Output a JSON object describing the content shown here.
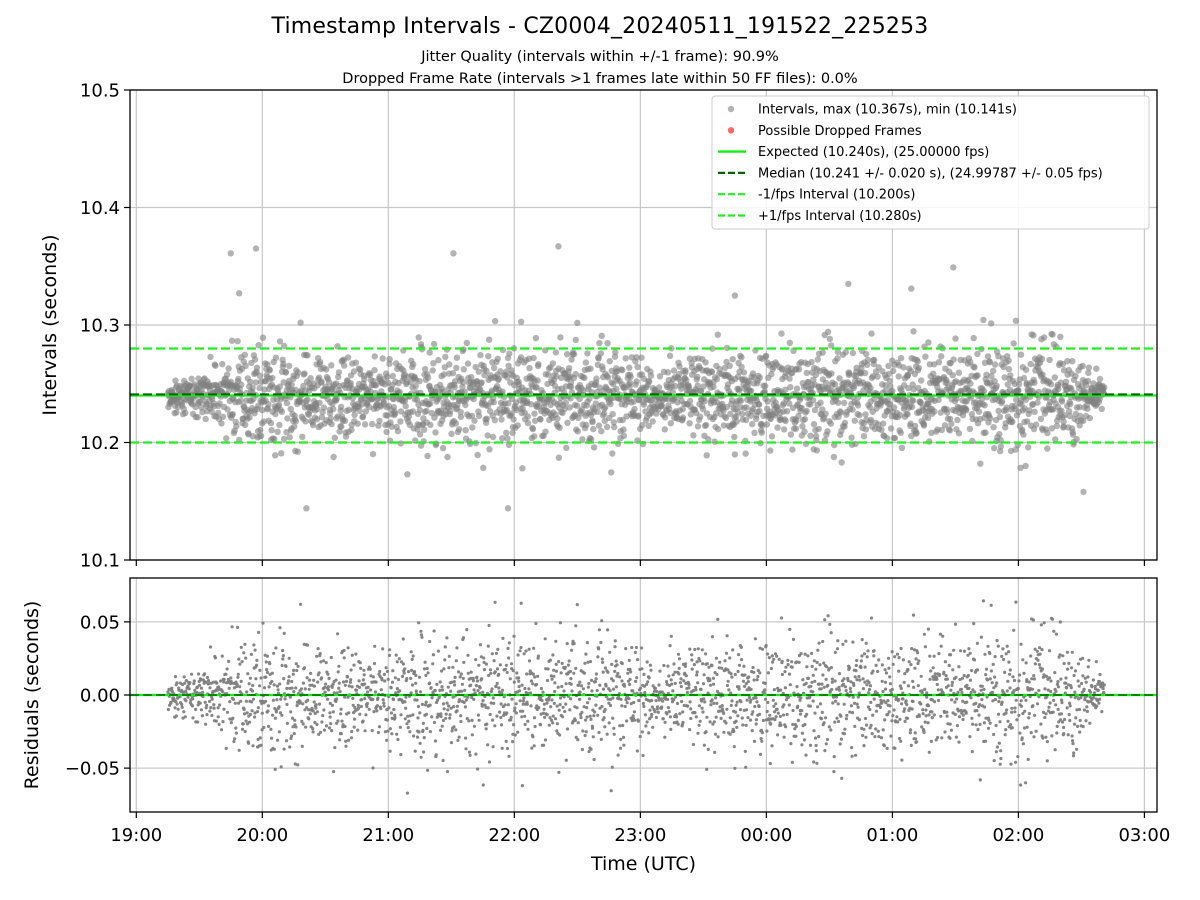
{
  "figure": {
    "title": "Timestamp Intervals - CZ0004_20240511_191522_225253",
    "subtitle_1": "Jitter Quality (intervals within +/-1 frame): 90.9%",
    "subtitle_2": "Dropped Frame Rate (intervals >1 frames late within 50 FF files): 0.0%"
  },
  "colors": {
    "points": "#808080",
    "dropped": "#ff4d4d",
    "expected": "#11ee11",
    "median": "#006400",
    "interval": "#22ee22",
    "grid": "#c8c8c8"
  },
  "chart_data": [
    {
      "type": "scatter",
      "ylabel": "Intervals (seconds)",
      "ylim": [
        10.1,
        10.5
      ],
      "yticks": [
        "10.1",
        "10.2",
        "10.3",
        "10.4",
        "10.5"
      ],
      "xrange_hours": [
        18.95,
        27.1
      ],
      "xticks": [
        "19:00",
        "20:00",
        "21:00",
        "22:00",
        "23:00",
        "00:00",
        "01:00",
        "02:00",
        "03:00"
      ],
      "grid": true,
      "legend_position": "top-right",
      "legend": [
        "Intervals, max (10.367s), min (10.141s)",
        "Possible Dropped Frames",
        "Expected (10.240s), (25.00000 fps)",
        "Median (10.241 +/- 0.020 s), (24.99787 +/- 0.05 fps)",
        "-1/fps Interval (10.200s)",
        "+1/fps Interval (10.280s)"
      ],
      "expected": 10.24,
      "median": 10.241,
      "minus_interval": 10.2,
      "plus_interval": 10.28,
      "max_interval": 10.367,
      "min_interval": 10.141,
      "dropped_frames": [],
      "time_range": [
        "19:15",
        "02:41"
      ],
      "series": [
        {
          "name": "Intervals",
          "note_points": [
            [
              "19:49",
              10.327
            ],
            [
              "19:57",
              10.365
            ],
            [
              "19:45",
              10.361
            ],
            [
              "20:21",
              10.144
            ],
            [
              "22:21",
              10.367
            ],
            [
              "21:57",
              10.144
            ],
            [
              "02:31",
              10.158
            ],
            [
              "01:29",
              10.349
            ],
            [
              "00:39",
              10.335
            ],
            [
              "21:31",
              10.361
            ],
            [
              "23:45",
              10.325
            ],
            [
              "01:09",
              10.331
            ]
          ]
        }
      ]
    },
    {
      "type": "scatter",
      "ylabel": "Residuals (seconds)",
      "xlabel": "Time (UTC)",
      "ylim": [
        -0.08,
        0.08
      ],
      "yticks": [
        "0.05",
        "0.00",
        "−0.05"
      ],
      "xticks": [
        "19:00",
        "20:00",
        "21:00",
        "22:00",
        "23:00",
        "00:00",
        "01:00",
        "02:00",
        "03:00"
      ],
      "grid": true,
      "reference": 0.0
    }
  ]
}
